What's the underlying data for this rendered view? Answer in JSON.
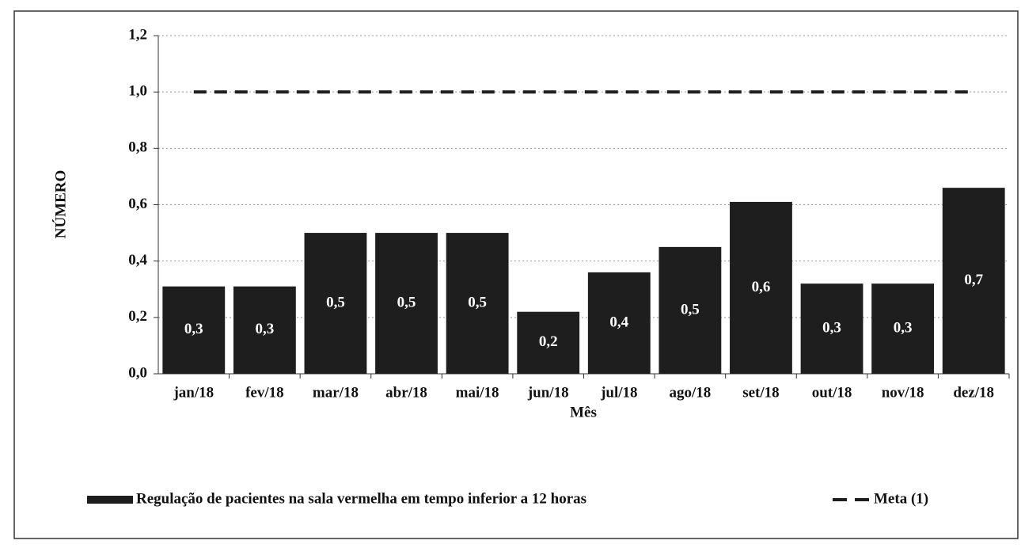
{
  "chart_data": {
    "type": "bar",
    "x_label": "Mês",
    "y_label": "NÚMERO",
    "categories": [
      "jan/18",
      "fev/18",
      "mar/18",
      "abr/18",
      "mai/18",
      "jun/18",
      "jul/18",
      "ago/18",
      "set/18",
      "out/18",
      "nov/18",
      "dez/18"
    ],
    "series": [
      {
        "name": "Regulação de pacientes na sala vermelha em tempo inferior a 12 horas",
        "color": "#1e1e1e",
        "values": [
          0.31,
          0.31,
          0.5,
          0.5,
          0.5,
          0.22,
          0.36,
          0.45,
          0.61,
          0.32,
          0.32,
          0.66
        ],
        "value_labels": [
          "0,3",
          "0,3",
          "0,5",
          "0,5",
          "0,5",
          "0,2",
          "0,4",
          "0,5",
          "0,6",
          "0,3",
          "0,3",
          "0,7"
        ]
      },
      {
        "name": "Meta (1)",
        "type": "line",
        "dashed": true,
        "color": "#1e1e1e",
        "values": [
          1,
          1,
          1,
          1,
          1,
          1,
          1,
          1,
          1,
          1,
          1,
          1
        ]
      }
    ],
    "ylim": [
      0,
      1.2
    ],
    "yticks": [
      {
        "value": 0,
        "label": "0,0"
      },
      {
        "value": 0.2,
        "label": "0,2"
      },
      {
        "value": 0.4,
        "label": "0,4"
      },
      {
        "value": 0.6,
        "label": "0,6"
      },
      {
        "value": 0.8,
        "label": "0,8"
      },
      {
        "value": 1,
        "label": "1,0"
      },
      {
        "value": 1.2,
        "label": "1,2"
      }
    ],
    "grid": true,
    "legend": "bottom"
  }
}
